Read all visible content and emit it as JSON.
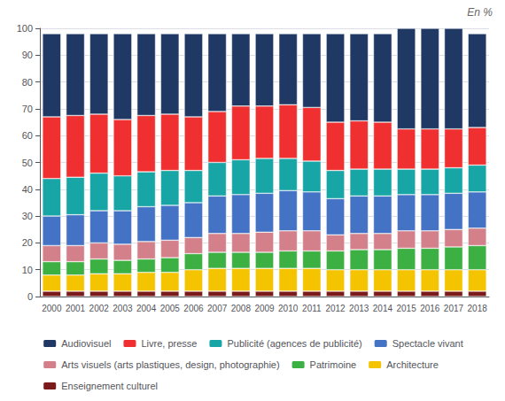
{
  "chart_data": {
    "type": "bar",
    "stacked": true,
    "categories": [
      "2000",
      "2001",
      "2002",
      "2003",
      "2004",
      "2005",
      "2006",
      "2007",
      "2008",
      "2009",
      "2010",
      "2011",
      "2012",
      "2013",
      "2014",
      "2015",
      "2016",
      "2017",
      "2018"
    ],
    "series": [
      {
        "name": "Enseignement culturel",
        "color": "#7B1A1A",
        "values": [
          2.0,
          2.0,
          2.0,
          2.0,
          2.0,
          2.0,
          2.0,
          2.0,
          2.0,
          2.0,
          2.0,
          2.0,
          2.0,
          2.0,
          2.0,
          2.0,
          2.0,
          2.0,
          2.0
        ]
      },
      {
        "name": "Architecture",
        "color": "#F5C400",
        "values": [
          6.0,
          6.0,
          6.5,
          6.5,
          7.0,
          7.0,
          8.0,
          8.5,
          8.5,
          8.5,
          8.5,
          8.5,
          8.0,
          8.0,
          8.0,
          8.0,
          8.0,
          8.0,
          8.0
        ]
      },
      {
        "name": "Patrimoine",
        "color": "#3CB043",
        "values": [
          5.0,
          5.0,
          5.5,
          5.0,
          5.0,
          5.5,
          6.0,
          6.0,
          6.0,
          6.0,
          6.5,
          6.5,
          7.0,
          7.5,
          7.5,
          8.0,
          8.0,
          8.5,
          9.0
        ]
      },
      {
        "name": "Arts visuels (arts plastiques, design, photographie)",
        "color": "#D4808A",
        "values": [
          6.0,
          6.0,
          6.0,
          6.0,
          6.5,
          6.5,
          6.0,
          7.0,
          7.0,
          7.5,
          7.5,
          7.5,
          6.0,
          6.0,
          6.0,
          6.5,
          6.5,
          6.5,
          6.5
        ]
      },
      {
        "name": "Spectacle vivant",
        "color": "#4472C4",
        "values": [
          11.0,
          11.5,
          12.0,
          12.5,
          13.0,
          13.0,
          13.0,
          14.0,
          14.5,
          14.5,
          15.0,
          14.5,
          13.5,
          14.0,
          14.0,
          13.5,
          13.5,
          13.5,
          13.5
        ]
      },
      {
        "name": "Publicité (agences de publicité)",
        "color": "#17A5A5",
        "values": [
          14.0,
          14.0,
          14.0,
          13.0,
          13.0,
          13.0,
          12.0,
          12.5,
          13.0,
          13.0,
          12.0,
          11.5,
          10.5,
          10.0,
          10.0,
          9.5,
          9.5,
          9.5,
          10.0
        ]
      },
      {
        "name": "Livre, presse",
        "color": "#F03030",
        "values": [
          23.0,
          23.0,
          22.0,
          21.0,
          21.0,
          21.0,
          20.0,
          19.0,
          20.0,
          19.5,
          20.0,
          20.0,
          18.0,
          18.0,
          17.5,
          15.0,
          15.0,
          14.5,
          14.0
        ]
      },
      {
        "name": "Audiovisuel",
        "color": "#1F3864",
        "values": [
          31.0,
          30.5,
          30.0,
          32.0,
          30.5,
          30.0,
          31.0,
          29.0,
          27.0,
          27.0,
          26.5,
          27.5,
          33.0,
          32.5,
          33.0,
          37.5,
          37.5,
          37.5,
          35.0
        ]
      }
    ],
    "annotations": [
      "En %"
    ],
    "ylim": [
      0,
      100
    ],
    "yticks": [
      0,
      10,
      20,
      30,
      40,
      50,
      60,
      70,
      80,
      90,
      100
    ],
    "grid": true,
    "legend": "bottom"
  }
}
